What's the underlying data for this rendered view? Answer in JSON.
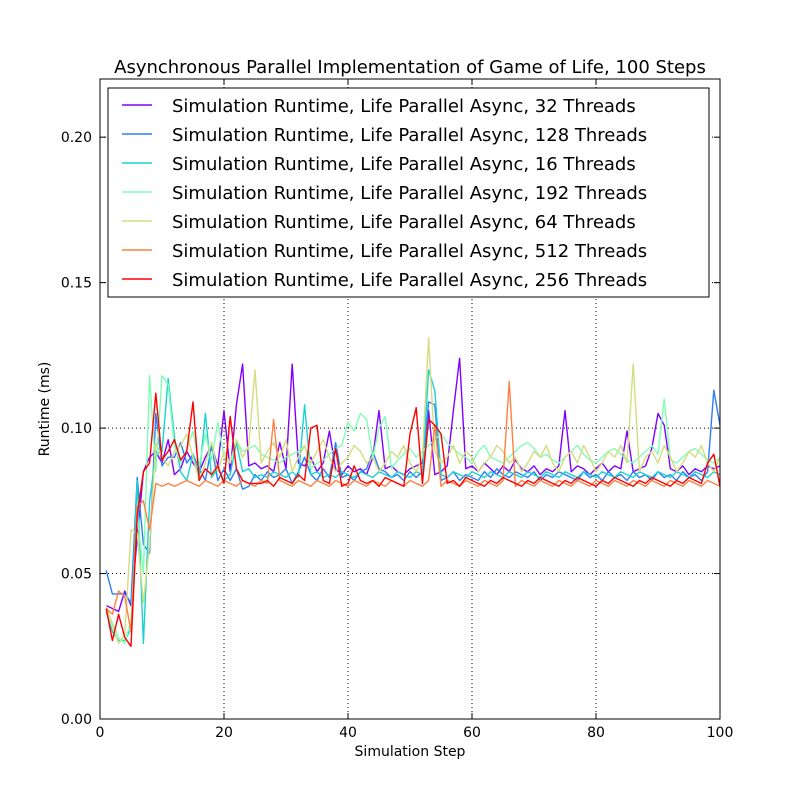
{
  "chart_data": {
    "type": "line",
    "title": "Asynchronous Parallel Implementation of Game of Life, 100 Steps",
    "xlabel": "Simulation Step",
    "ylabel": "Runtime (ms)",
    "xlim": [
      0,
      100
    ],
    "ylim": [
      0.0,
      0.22
    ],
    "xticks": [
      0,
      20,
      40,
      60,
      80,
      100
    ],
    "xtick_labels": [
      "0",
      "20",
      "40",
      "60",
      "80",
      "100"
    ],
    "yticks": [
      0.0,
      0.05,
      0.1,
      0.15,
      0.2
    ],
    "ytick_labels": [
      "0.00",
      "0.05",
      "0.10",
      "0.15",
      "0.20"
    ],
    "grid": true,
    "legend_position": "top",
    "x": [
      1,
      2,
      3,
      4,
      5,
      6,
      7,
      8,
      9,
      10,
      11,
      12,
      13,
      14,
      15,
      16,
      17,
      18,
      19,
      20,
      21,
      22,
      23,
      24,
      25,
      26,
      27,
      28,
      29,
      30,
      31,
      32,
      33,
      34,
      35,
      36,
      37,
      38,
      39,
      40,
      41,
      42,
      43,
      44,
      45,
      46,
      47,
      48,
      49,
      50,
      51,
      52,
      53,
      54,
      55,
      56,
      57,
      58,
      59,
      60,
      61,
      62,
      63,
      64,
      65,
      66,
      67,
      68,
      69,
      70,
      71,
      72,
      73,
      74,
      75,
      76,
      77,
      78,
      79,
      80,
      81,
      82,
      83,
      84,
      85,
      86,
      87,
      88,
      89,
      90,
      91,
      92,
      93,
      94,
      95,
      96,
      97,
      98,
      99,
      100
    ],
    "series": [
      {
        "name": "Simulation Runtime, Life Parallel Async, 32 Threads",
        "color": "#8000ff",
        "values": [
          0.039,
          0.038,
          0.037,
          0.044,
          0.039,
          0.062,
          0.085,
          0.09,
          0.092,
          0.088,
          0.096,
          0.084,
          0.086,
          0.092,
          0.088,
          0.085,
          0.09,
          0.094,
          0.087,
          0.106,
          0.085,
          0.108,
          0.122,
          0.087,
          0.088,
          0.086,
          0.087,
          0.085,
          0.095,
          0.086,
          0.122,
          0.088,
          0.087,
          0.09,
          0.085,
          0.088,
          0.099,
          0.086,
          0.084,
          0.087,
          0.085,
          0.086,
          0.084,
          0.09,
          0.106,
          0.086,
          0.087,
          0.085,
          0.084,
          0.086,
          0.087,
          0.088,
          0.106,
          0.084,
          0.085,
          0.087,
          0.106,
          0.124,
          0.086,
          0.087,
          0.085,
          0.088,
          0.086,
          0.084,
          0.087,
          0.085,
          0.089,
          0.086,
          0.085,
          0.087,
          0.084,
          0.086,
          0.085,
          0.087,
          0.106,
          0.085,
          0.087,
          0.086,
          0.084,
          0.086,
          0.088,
          0.085,
          0.087,
          0.086,
          0.099,
          0.085,
          0.086,
          0.087,
          0.093,
          0.105,
          0.101,
          0.086,
          0.085,
          0.087,
          0.084,
          0.086,
          0.085,
          0.087,
          0.086,
          0.087
        ]
      },
      {
        "name": "Simulation Runtime, Life Parallel Async, 128 Threads",
        "color": "#2c7ef7",
        "values": [
          0.051,
          0.043,
          0.043,
          0.043,
          0.04,
          0.083,
          0.06,
          0.057,
          0.105,
          0.087,
          0.09,
          0.09,
          0.095,
          0.088,
          0.091,
          0.086,
          0.082,
          0.094,
          0.082,
          0.086,
          0.082,
          0.086,
          0.079,
          0.08,
          0.084,
          0.082,
          0.085,
          0.083,
          0.084,
          0.086,
          0.081,
          0.085,
          0.09,
          0.084,
          0.082,
          0.086,
          0.083,
          0.095,
          0.083,
          0.084,
          0.082,
          0.085,
          0.086,
          0.092,
          0.086,
          0.085,
          0.083,
          0.084,
          0.082,
          0.085,
          0.083,
          0.085,
          0.109,
          0.108,
          0.082,
          0.083,
          0.085,
          0.082,
          0.084,
          0.083,
          0.082,
          0.085,
          0.083,
          0.086,
          0.084,
          0.083,
          0.085,
          0.084,
          0.083,
          0.085,
          0.082,
          0.084,
          0.083,
          0.085,
          0.084,
          0.083,
          0.082,
          0.085,
          0.083,
          0.084,
          0.082,
          0.085,
          0.083,
          0.084,
          0.082,
          0.085,
          0.083,
          0.084,
          0.082,
          0.085,
          0.083,
          0.084,
          0.082,
          0.085,
          0.083,
          0.084,
          0.082,
          0.085,
          0.113,
          0.101
        ]
      },
      {
        "name": "Simulation Runtime, Life Parallel Async, 16 Threads",
        "color": "#1ad3d1",
        "values": [
          0.037,
          0.03,
          0.027,
          0.027,
          0.031,
          0.082,
          0.026,
          0.075,
          0.091,
          0.092,
          0.117,
          0.097,
          0.085,
          0.082,
          0.091,
          0.083,
          0.105,
          0.083,
          0.086,
          0.082,
          0.084,
          0.095,
          0.085,
          0.086,
          0.083,
          0.084,
          0.083,
          0.085,
          0.084,
          0.083,
          0.085,
          0.083,
          0.108,
          0.084,
          0.085,
          0.083,
          0.084,
          0.083,
          0.085,
          0.084,
          0.083,
          0.085,
          0.084,
          0.083,
          0.085,
          0.084,
          0.083,
          0.085,
          0.084,
          0.083,
          0.085,
          0.084,
          0.12,
          0.113,
          0.084,
          0.083,
          0.085,
          0.084,
          0.083,
          0.085,
          0.084,
          0.083,
          0.085,
          0.084,
          0.083,
          0.085,
          0.084,
          0.083,
          0.085,
          0.084,
          0.083,
          0.085,
          0.084,
          0.083,
          0.085,
          0.084,
          0.083,
          0.085,
          0.084,
          0.083,
          0.085,
          0.084,
          0.083,
          0.085,
          0.084,
          0.083,
          0.085,
          0.084,
          0.083,
          0.085,
          0.084,
          0.083,
          0.085,
          0.084,
          0.083,
          0.085,
          0.084,
          0.083,
          0.085,
          0.084
        ]
      },
      {
        "name": "Simulation Runtime, Life Parallel Async, 192 Threads",
        "color": "#80ffb4",
        "values": [
          0.038,
          0.033,
          0.028,
          0.026,
          0.034,
          0.07,
          0.05,
          0.118,
          0.085,
          0.118,
          0.115,
          0.094,
          0.088,
          0.093,
          0.099,
          0.087,
          0.098,
          0.089,
          0.102,
          0.09,
          0.088,
          0.096,
          0.092,
          0.093,
          0.094,
          0.091,
          0.09,
          0.089,
          0.088,
          0.09,
          0.091,
          0.092,
          0.094,
          0.086,
          0.088,
          0.089,
          0.091,
          0.093,
          0.094,
          0.102,
          0.099,
          0.105,
          0.103,
          0.09,
          0.1,
          0.104,
          0.086,
          0.089,
          0.091,
          0.093,
          0.09,
          0.092,
          0.094,
          0.096,
          0.098,
          0.095,
          0.093,
          0.091,
          0.09,
          0.088,
          0.092,
          0.094,
          0.09,
          0.089,
          0.088,
          0.09,
          0.092,
          0.094,
          0.095,
          0.093,
          0.09,
          0.091,
          0.089,
          0.088,
          0.09,
          0.092,
          0.094,
          0.091,
          0.089,
          0.088,
          0.09,
          0.092,
          0.093,
          0.091,
          0.089,
          0.088,
          0.09,
          0.092,
          0.094,
          0.091,
          0.11,
          0.089,
          0.088,
          0.09,
          0.092,
          0.093,
          0.091,
          0.089,
          0.088,
          0.09
        ]
      },
      {
        "name": "Simulation Runtime, Life Parallel Async, 64 Threads",
        "color": "#d4dd80",
        "values": [
          0.039,
          0.032,
          0.026,
          0.029,
          0.065,
          0.064,
          0.04,
          0.06,
          0.095,
          0.09,
          0.087,
          0.092,
          0.094,
          0.098,
          0.09,
          0.082,
          0.088,
          0.095,
          0.085,
          0.092,
          0.088,
          0.096,
          0.09,
          0.094,
          0.12,
          0.088,
          0.092,
          0.095,
          0.09,
          0.096,
          0.085,
          0.09,
          0.094,
          0.088,
          0.092,
          0.096,
          0.09,
          0.085,
          0.088,
          0.09,
          0.094,
          0.092,
          0.088,
          0.09,
          0.085,
          0.088,
          0.092,
          0.09,
          0.094,
          0.088,
          0.085,
          0.09,
          0.131,
          0.092,
          0.088,
          0.09,
          0.094,
          0.088,
          0.092,
          0.09,
          0.085,
          0.088,
          0.09,
          0.094,
          0.092,
          0.088,
          0.09,
          0.085,
          0.088,
          0.092,
          0.09,
          0.094,
          0.088,
          0.085,
          0.09,
          0.092,
          0.088,
          0.094,
          0.09,
          0.085,
          0.088,
          0.092,
          0.09,
          0.094,
          0.088,
          0.122,
          0.085,
          0.09,
          0.092,
          0.088,
          0.094,
          0.09,
          0.085,
          0.088,
          0.092,
          0.09,
          0.094,
          0.088,
          0.085,
          0.09
        ]
      },
      {
        "name": "Simulation Runtime, Life Parallel Async, 512 Threads",
        "color": "#ff8040",
        "values": [
          0.038,
          0.036,
          0.044,
          0.042,
          0.03,
          0.073,
          0.075,
          0.065,
          0.081,
          0.08,
          0.081,
          0.08,
          0.081,
          0.082,
          0.081,
          0.08,
          0.082,
          0.081,
          0.08,
          0.082,
          0.081,
          0.08,
          0.082,
          0.081,
          0.08,
          0.082,
          0.081,
          0.103,
          0.082,
          0.081,
          0.08,
          0.082,
          0.081,
          0.08,
          0.082,
          0.081,
          0.08,
          0.082,
          0.081,
          0.08,
          0.082,
          0.081,
          0.08,
          0.082,
          0.081,
          0.08,
          0.082,
          0.081,
          0.08,
          0.082,
          0.081,
          0.08,
          0.082,
          0.101,
          0.08,
          0.082,
          0.081,
          0.08,
          0.082,
          0.081,
          0.08,
          0.082,
          0.081,
          0.08,
          0.082,
          0.116,
          0.08,
          0.082,
          0.081,
          0.08,
          0.082,
          0.081,
          0.08,
          0.082,
          0.081,
          0.08,
          0.082,
          0.081,
          0.08,
          0.082,
          0.081,
          0.08,
          0.082,
          0.081,
          0.08,
          0.082,
          0.081,
          0.08,
          0.082,
          0.081,
          0.08,
          0.082,
          0.081,
          0.08,
          0.082,
          0.081,
          0.08,
          0.082,
          0.081,
          0.08
        ]
      },
      {
        "name": "Simulation Runtime, Life Parallel Async, 256 Threads",
        "color": "#ff0000",
        "values": [
          0.038,
          0.027,
          0.036,
          0.028,
          0.025,
          0.07,
          0.085,
          0.088,
          0.112,
          0.089,
          0.092,
          0.096,
          0.089,
          0.092,
          0.109,
          0.082,
          0.086,
          0.084,
          0.087,
          0.081,
          0.104,
          0.086,
          0.082,
          0.081,
          0.081,
          0.081,
          0.082,
          0.08,
          0.083,
          0.082,
          0.081,
          0.084,
          0.082,
          0.1,
          0.101,
          0.082,
          0.081,
          0.093,
          0.08,
          0.081,
          0.087,
          0.082,
          0.081,
          0.082,
          0.08,
          0.083,
          0.082,
          0.081,
          0.08,
          0.098,
          0.107,
          0.081,
          0.103,
          0.101,
          0.098,
          0.081,
          0.082,
          0.08,
          0.083,
          0.082,
          0.081,
          0.08,
          0.082,
          0.081,
          0.083,
          0.082,
          0.081,
          0.08,
          0.082,
          0.081,
          0.083,
          0.082,
          0.081,
          0.08,
          0.082,
          0.081,
          0.083,
          0.082,
          0.081,
          0.08,
          0.082,
          0.081,
          0.083,
          0.082,
          0.081,
          0.08,
          0.082,
          0.081,
          0.083,
          0.082,
          0.081,
          0.08,
          0.082,
          0.081,
          0.083,
          0.082,
          0.081,
          0.088,
          0.091,
          0.08
        ]
      }
    ]
  }
}
